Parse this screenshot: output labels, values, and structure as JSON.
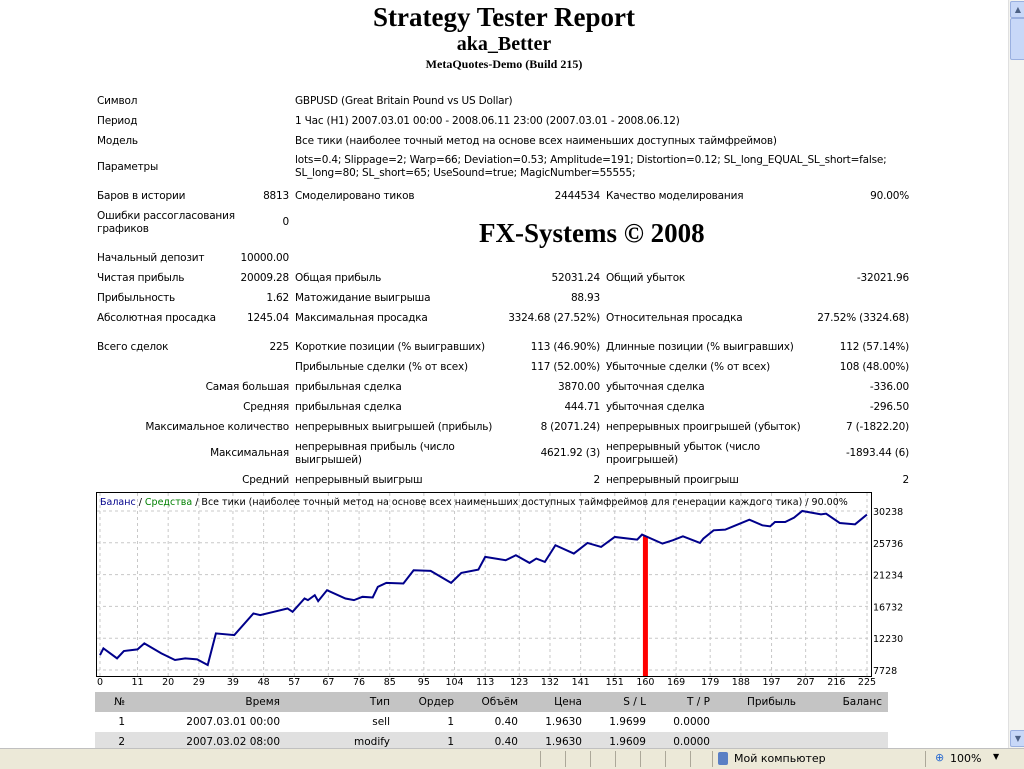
{
  "report": {
    "title": "Strategy Tester Report",
    "expert": "aka_Better",
    "server": "MetaQuotes-Demo (Build 215)",
    "watermark": "FX-Systems © 2008"
  },
  "info": {
    "symbol_label": "Символ",
    "symbol": "GBPUSD (Great Britain Pound vs US Dollar)",
    "period_label": "Период",
    "period": "1 Час (H1) 2007.03.01 00:00 - 2008.06.11 23:00 (2007.03.01 - 2008.06.12)",
    "model_label": "Модель",
    "model": "Все тики (наиболее точный метод на основе всех наименьших доступных таймфреймов)",
    "params_label": "Параметры",
    "params_line1": "lots=0.4; Slippage=2; Warp=66; Deviation=0.53; Amplitude=191; Distortion=0.12; SL_long_EQUAL_SL_short=false;",
    "params_line2": "SL_long=80; SL_short=65; UseSound=true; MagicNumber=55555;"
  },
  "stats": {
    "bars_label": "Баров в истории",
    "bars": "8813",
    "ticks_label": "Смоделировано тиков",
    "ticks": "2444534",
    "quality_label": "Качество моделирования",
    "quality": "90.00%",
    "errors_label_1": "Ошибки рассогласования",
    "errors_label_2": "графиков",
    "errors": "0",
    "deposit_label": "Начальный депозит",
    "deposit": "10000.00",
    "net_label": "Чистая прибыль",
    "net": "20009.28",
    "gross_profit_label": "Общая прибыль",
    "gross_profit": "52031.24",
    "gross_loss_label": "Общий убыток",
    "gross_loss": "-32021.96",
    "pf_label": "Прибыльность",
    "pf": "1.62",
    "expect_label": "Матожидание выигрыша",
    "expect": "88.93",
    "abs_dd_label": "Абсолютная просадка",
    "abs_dd": "1245.04",
    "max_dd_label": "Максимальная просадка",
    "max_dd": "3324.68 (27.52%)",
    "rel_dd_label": "Относительная просадка",
    "rel_dd": "27.52% (3324.68)",
    "total_label": "Всего сделок",
    "total": "225",
    "short_label": "Короткие позиции (% выигравших)",
    "short": "113 (46.90%)",
    "long_label": "Длинные позиции (% выигравших)",
    "long": "112 (57.14%)",
    "win_label": "Прибыльные сделки (% от всех)",
    "win": "117 (52.00%)",
    "loss_label": "Убыточные сделки (% от всех)",
    "loss": "108 (48.00%)",
    "largest_label": "Самая большая",
    "largest_win_label": "прибыльная сделка",
    "largest_win": "3870.00",
    "largest_loss_label": "убыточная сделка",
    "largest_loss": "-336.00",
    "avg_label": "Средняя",
    "avg_win_label": "прибыльная сделка",
    "avg_win": "444.71",
    "avg_loss_label": "убыточная сделка",
    "avg_loss": "-296.50",
    "maxcount_label": "Максимальное количество",
    "maxcount_win_label": "непрерывных выигрышей (прибыль)",
    "maxcount_win": "8 (2071.24)",
    "maxcount_loss_label": "непрерывных проигрышей (убыток)",
    "maxcount_loss": "7 (-1822.20)",
    "maxval_label": "Максимальная",
    "maxval_win_label_1": "непрерывная прибыль (число",
    "maxval_win_label_2": "выигрышей)",
    "maxval_win": "4621.92 (3)",
    "maxval_loss_label_1": "непрерывный убыток (число",
    "maxval_loss_label_2": "проигрышей)",
    "maxval_loss": "-1893.44 (6)",
    "avgcons_label": "Средний",
    "avgcons_win_label": "непрерывный выигрыш",
    "avgcons_win": "2",
    "avgcons_loss_label": "непрерывный проигрыш",
    "avgcons_loss": "2"
  },
  "chart_data": {
    "type": "line",
    "legend_balance": "Баланс",
    "legend_sep1": " / ",
    "legend_equity": "Средства",
    "legend_rest": " / Все тики (наиболее точный метод на основе всех наименьших доступных таймфреймов для генерации каждого тика) / 90.00%",
    "x_ticks": [
      "0",
      "11",
      "20",
      "29",
      "39",
      "48",
      "57",
      "67",
      "76",
      "85",
      "95",
      "104",
      "113",
      "123",
      "132",
      "141",
      "151",
      "160",
      "169",
      "179",
      "188",
      "197",
      "207",
      "216",
      "225"
    ],
    "y_ticks": [
      "7728",
      "12230",
      "16732",
      "21234",
      "25736",
      "30238"
    ],
    "ylim": [
      7728,
      30238
    ],
    "xlim": [
      0,
      225
    ],
    "grid": true,
    "colors": {
      "balance": "#00008b",
      "equity": "#008000",
      "marker": "#ff0000"
    },
    "marker_x": 160,
    "series": [
      {
        "name": "Баланс",
        "points": [
          [
            0,
            9847
          ],
          [
            1,
            10790
          ],
          [
            5,
            9376
          ],
          [
            7,
            10412
          ],
          [
            11,
            10648
          ],
          [
            13,
            11495
          ],
          [
            18,
            10083
          ],
          [
            22,
            9141
          ],
          [
            25,
            9376
          ],
          [
            28.5,
            9235
          ],
          [
            31.6,
            8434
          ],
          [
            34,
            12908
          ],
          [
            39.4,
            12673
          ],
          [
            45,
            15733
          ],
          [
            47,
            15497
          ],
          [
            51,
            15968
          ],
          [
            55,
            16439
          ],
          [
            56.5,
            15968
          ],
          [
            60,
            17852
          ],
          [
            61,
            17617
          ],
          [
            63,
            18323
          ],
          [
            64,
            17475
          ],
          [
            66.6,
            19030
          ],
          [
            72,
            17852
          ],
          [
            74.5,
            17617
          ],
          [
            77,
            18088
          ],
          [
            80,
            17994
          ],
          [
            81.5,
            19500
          ],
          [
            84,
            20065
          ],
          [
            89,
            19971
          ],
          [
            92,
            21855
          ],
          [
            97,
            21761
          ],
          [
            103,
            20065
          ],
          [
            106,
            21478
          ],
          [
            111,
            21949
          ],
          [
            113,
            23738
          ],
          [
            119,
            23267
          ],
          [
            122,
            23973
          ],
          [
            126,
            22890
          ],
          [
            128,
            23502
          ],
          [
            130.5,
            23032
          ],
          [
            133.6,
            25387
          ],
          [
            139,
            24209
          ],
          [
            143,
            25716
          ],
          [
            147,
            25151
          ],
          [
            151,
            26564
          ],
          [
            157.6,
            26187
          ],
          [
            159,
            26893
          ],
          [
            165,
            25622
          ],
          [
            168,
            26093
          ],
          [
            171,
            26658
          ],
          [
            176,
            25716
          ],
          [
            177,
            26328
          ],
          [
            180,
            27505
          ],
          [
            183.4,
            27599
          ],
          [
            186.5,
            28211
          ],
          [
            190.5,
            29012
          ],
          [
            194.3,
            28211
          ],
          [
            196.6,
            28070
          ],
          [
            198,
            28682
          ],
          [
            201,
            28682
          ],
          [
            203.6,
            29294
          ],
          [
            206,
            30238
          ],
          [
            211.5,
            29765
          ],
          [
            213,
            29859
          ],
          [
            217,
            28541
          ],
          [
            221.5,
            28353
          ],
          [
            224.7,
            29624
          ],
          [
            225,
            29718
          ]
        ]
      }
    ]
  },
  "deals": {
    "headers": [
      "№",
      "Время",
      "Тип",
      "Ордер",
      "Объём",
      "Цена",
      "S / L",
      "T / P",
      "Прибыль",
      "Баланс"
    ],
    "rows": [
      [
        "1",
        "2007.03.01 00:00",
        "sell",
        "1",
        "0.40",
        "1.9630",
        "1.9699",
        "0.0000",
        "",
        ""
      ],
      [
        "2",
        "2007.03.02 08:00",
        "modify",
        "1",
        "0.40",
        "1.9630",
        "1.9609",
        "0.0000",
        "",
        ""
      ]
    ]
  },
  "statusbar": {
    "zone": "Мой компьютер",
    "zoom": "100%"
  }
}
